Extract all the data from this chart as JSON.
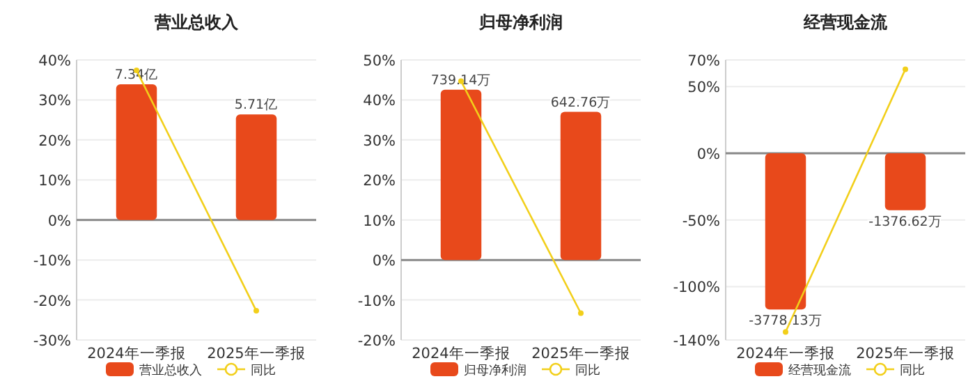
{
  "chart_data": [
    {
      "type": "bar",
      "title": "营业总收入",
      "categories": [
        "2024年一季报",
        "2025年一季报"
      ],
      "ylim": [
        -30,
        40
      ],
      "yticks": [
        {
          "value": -30,
          "label": "-30%"
        },
        {
          "value": -20,
          "label": "-20%"
        },
        {
          "value": -10,
          "label": "-10%"
        },
        {
          "value": 0,
          "label": "0%"
        },
        {
          "value": 10,
          "label": "10%"
        },
        {
          "value": 20,
          "label": "20%"
        },
        {
          "value": 30,
          "label": "30%"
        },
        {
          "value": 40,
          "label": "40%"
        }
      ],
      "y2lim": [
        -6.5,
        8.66
      ],
      "grid": "y",
      "legend": "bottom",
      "series": [
        {
          "name": "营业总收入",
          "axis": "y2",
          "color": "#e8491b",
          "values": [
            7.34,
            5.71
          ],
          "value_labels": [
            "7.34亿",
            "5.71亿"
          ]
        },
        {
          "name": "同比",
          "type": "line",
          "color": "#f2cf1a",
          "marker": "circle",
          "values": [
            37.4,
            -22.7
          ]
        }
      ]
    },
    {
      "type": "bar",
      "title": "归母净利润",
      "categories": [
        "2024年一季报",
        "2025年一季报"
      ],
      "ylim": [
        -20,
        50
      ],
      "yticks": [
        {
          "value": -20,
          "label": "-20%"
        },
        {
          "value": -10,
          "label": "-10%"
        },
        {
          "value": 0,
          "label": "0%"
        },
        {
          "value": 10,
          "label": "10%"
        },
        {
          "value": 20,
          "label": "20%"
        },
        {
          "value": 30,
          "label": "30%"
        },
        {
          "value": 40,
          "label": "40%"
        },
        {
          "value": 50,
          "label": "50%"
        }
      ],
      "y2lim": [
        -347,
        868
      ],
      "grid": "y",
      "legend": "bottom",
      "series": [
        {
          "name": "归母净利润",
          "axis": "y2",
          "color": "#e8491b",
          "values": [
            739.14,
            642.76
          ],
          "value_labels": [
            "739.14万",
            "642.76万"
          ]
        },
        {
          "name": "同比",
          "type": "line",
          "color": "#f2cf1a",
          "marker": "circle",
          "values": [
            44.7,
            -13.3
          ]
        }
      ]
    },
    {
      "type": "bar",
      "title": "经营现金流",
      "categories": [
        "2024年一季报",
        "2025年一季报"
      ],
      "ylim": [
        -140,
        70
      ],
      "yticks": [
        {
          "value": -140,
          "label": "-140%"
        },
        {
          "value": -100,
          "label": "-100%"
        },
        {
          "value": -50,
          "label": "-50%"
        },
        {
          "value": 0,
          "label": "0%"
        },
        {
          "value": 50,
          "label": "50%"
        },
        {
          "value": 70,
          "label": "70%"
        }
      ],
      "y2lim": [
        -4513,
        2257
      ],
      "grid": "y",
      "legend": "bottom",
      "series": [
        {
          "name": "经营现金流",
          "axis": "y2",
          "color": "#e8491b",
          "values": [
            -3778.13,
            -1376.62
          ],
          "value_labels": [
            "-3778.13万",
            "-1376.62万"
          ]
        },
        {
          "name": "同比",
          "type": "line",
          "color": "#f2cf1a",
          "marker": "circle",
          "values": [
            -134,
            63
          ]
        }
      ]
    }
  ]
}
